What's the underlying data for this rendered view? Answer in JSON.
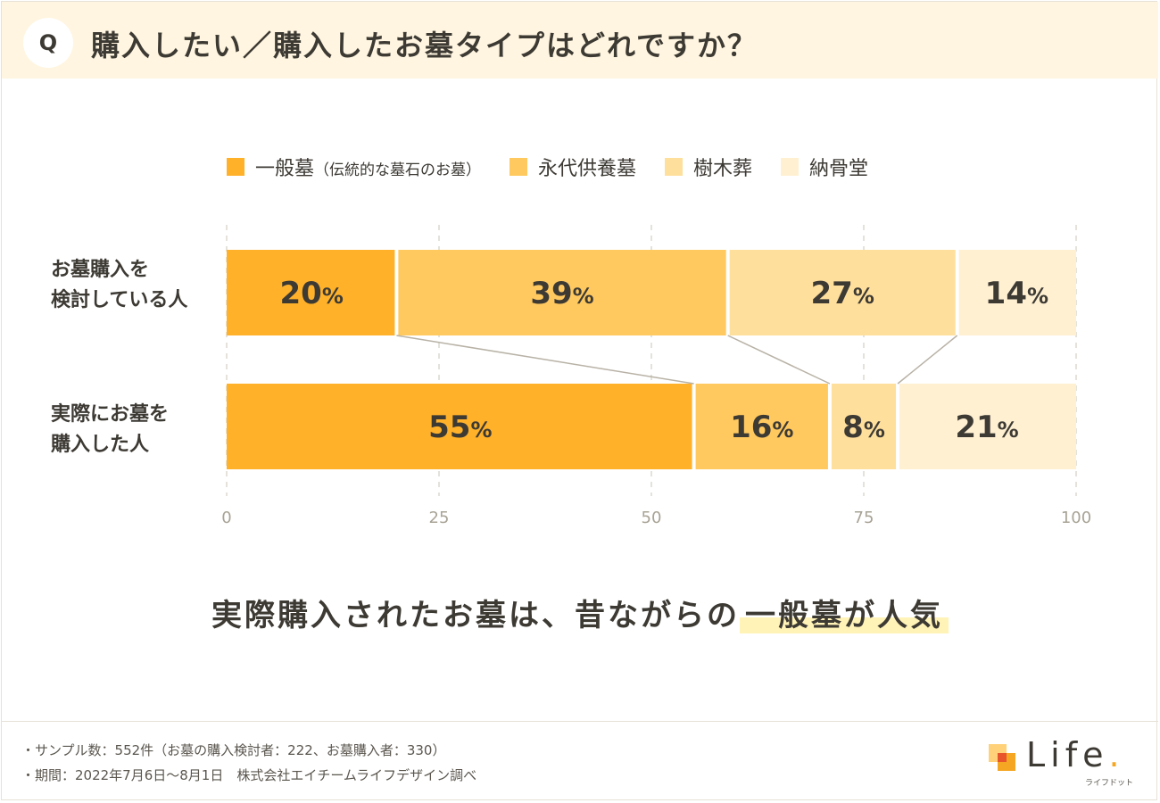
{
  "header": {
    "q_mark": "Q",
    "title": "購入したい／購入したお墓タイプはどれですか？"
  },
  "legend": [
    {
      "label": "一般墓",
      "sub": "（伝統的な墓石のお墓）",
      "color": "#ffb12a"
    },
    {
      "label": "永代供養墓",
      "sub": "",
      "color": "#ffc95f"
    },
    {
      "label": "樹木葬",
      "sub": "",
      "color": "#ffdf9c"
    },
    {
      "label": "納骨堂",
      "sub": "",
      "color": "#fff0d2"
    }
  ],
  "chart_data": {
    "type": "bar",
    "orientation": "horizontal",
    "stacked": true,
    "categories": [
      "お墓購入を\n検討している人",
      "実際にお墓を\n購入した人"
    ],
    "series": [
      {
        "name": "一般墓（伝統的な墓石のお墓）",
        "values": [
          20,
          55
        ],
        "color": "#ffb12a"
      },
      {
        "name": "永代供養墓",
        "values": [
          39,
          16
        ],
        "color": "#ffc95f"
      },
      {
        "name": "樹木葬",
        "values": [
          27,
          8
        ],
        "color": "#ffdf9c"
      },
      {
        "name": "納骨堂",
        "values": [
          14,
          21
        ],
        "color": "#fff0d2"
      }
    ],
    "value_suffix": "%",
    "xlim": [
      0,
      100
    ],
    "xticks": [
      0,
      25,
      50,
      75,
      100
    ],
    "grid": true,
    "legend_position": "top"
  },
  "conclusion": {
    "prefix": "実際購入されたお墓は、昔ながらの",
    "highlight": "一般墓が人気"
  },
  "footer": {
    "sample": "・サンプル数：552件（お墓の購入検討者：222、お墓購入者：330）",
    "period": "・期間：2022年7月6日〜8月1日　株式会社エイチームライフデザイン調べ"
  },
  "logo": {
    "text": "Life",
    "dot": ".",
    "sub": "ライフドット"
  }
}
